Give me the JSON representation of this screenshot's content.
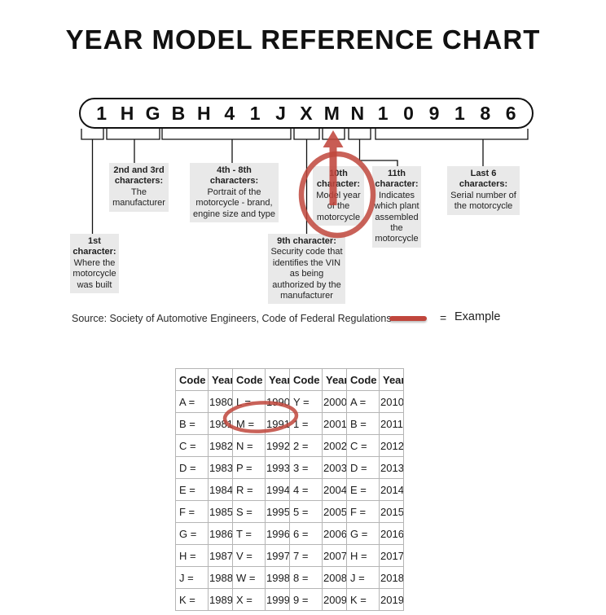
{
  "title": "YEAR MODEL REFERENCE CHART",
  "colors": {
    "accent_red": "#c0463c",
    "callout_bg": "#e9e9e9"
  },
  "vin": {
    "chars": [
      "1",
      "H",
      "G",
      "B",
      "H",
      "4",
      "1",
      "J",
      "X",
      "M",
      "N",
      "1",
      "0",
      "9",
      "1",
      "8",
      "6"
    ]
  },
  "callouts": {
    "first": {
      "title": "1st character:",
      "body": "Where the motorcycle was built"
    },
    "second_third": {
      "title": "2nd and 3rd characters:",
      "body": "The manufacturer"
    },
    "fourth_eighth": {
      "title": "4th - 8th characters:",
      "body": "Portrait of the motorcycle - brand, engine size and type"
    },
    "ninth": {
      "title": "9th character:",
      "body": "Security code that identifies the VIN as being authorized by the manufacturer"
    },
    "tenth": {
      "title": "10th character:",
      "body": "Model year of the motorcycle"
    },
    "eleventh": {
      "title": "11th character:",
      "body": "Indicates which plant assembled the motorcycle"
    },
    "last_six": {
      "title": "Last 6 characters:",
      "body": "Serial number of the motorcycle"
    }
  },
  "source_line": "Source:  Society of Automotive Engineers, Code of Federal Regulations",
  "legend": {
    "equals": "=",
    "label": "Example"
  },
  "table": {
    "headers": [
      "Code",
      "Year",
      "Code",
      "Year",
      "Code",
      "Year",
      "Code",
      "Year"
    ],
    "rows": [
      [
        "A =",
        "1980",
        "L =",
        "1990",
        "Y =",
        "2000",
        "A =",
        "2010"
      ],
      [
        "B =",
        "1981",
        "M =",
        "1991",
        "1 =",
        "2001",
        "B =",
        "2011"
      ],
      [
        "C =",
        "1982",
        "N =",
        "1992",
        "2 =",
        "2002",
        "C =",
        "2012"
      ],
      [
        "D =",
        "1983",
        "P =",
        "1993",
        "3 =",
        "2003",
        "D =",
        "2013"
      ],
      [
        "E =",
        "1984",
        "R =",
        "1994",
        "4 =",
        "2004",
        "E =",
        "2014"
      ],
      [
        "F =",
        "1985",
        "S =",
        "1995",
        "5 =",
        "2005",
        "F =",
        "2015"
      ],
      [
        "G =",
        "1986",
        "T =",
        "1996",
        "6 =",
        "2006",
        "G =",
        "2016"
      ],
      [
        "H =",
        "1987",
        "V =",
        "1997",
        "7 =",
        "2007",
        "H =",
        "2017"
      ],
      [
        "J =",
        "1988",
        "W =",
        "1998",
        "8 =",
        "2008",
        "J =",
        "2018"
      ],
      [
        "K =",
        "1989",
        "X =",
        "1999",
        "9 =",
        "2009",
        "K =",
        "2019"
      ]
    ],
    "highlighted_cell": "M = 1991"
  }
}
